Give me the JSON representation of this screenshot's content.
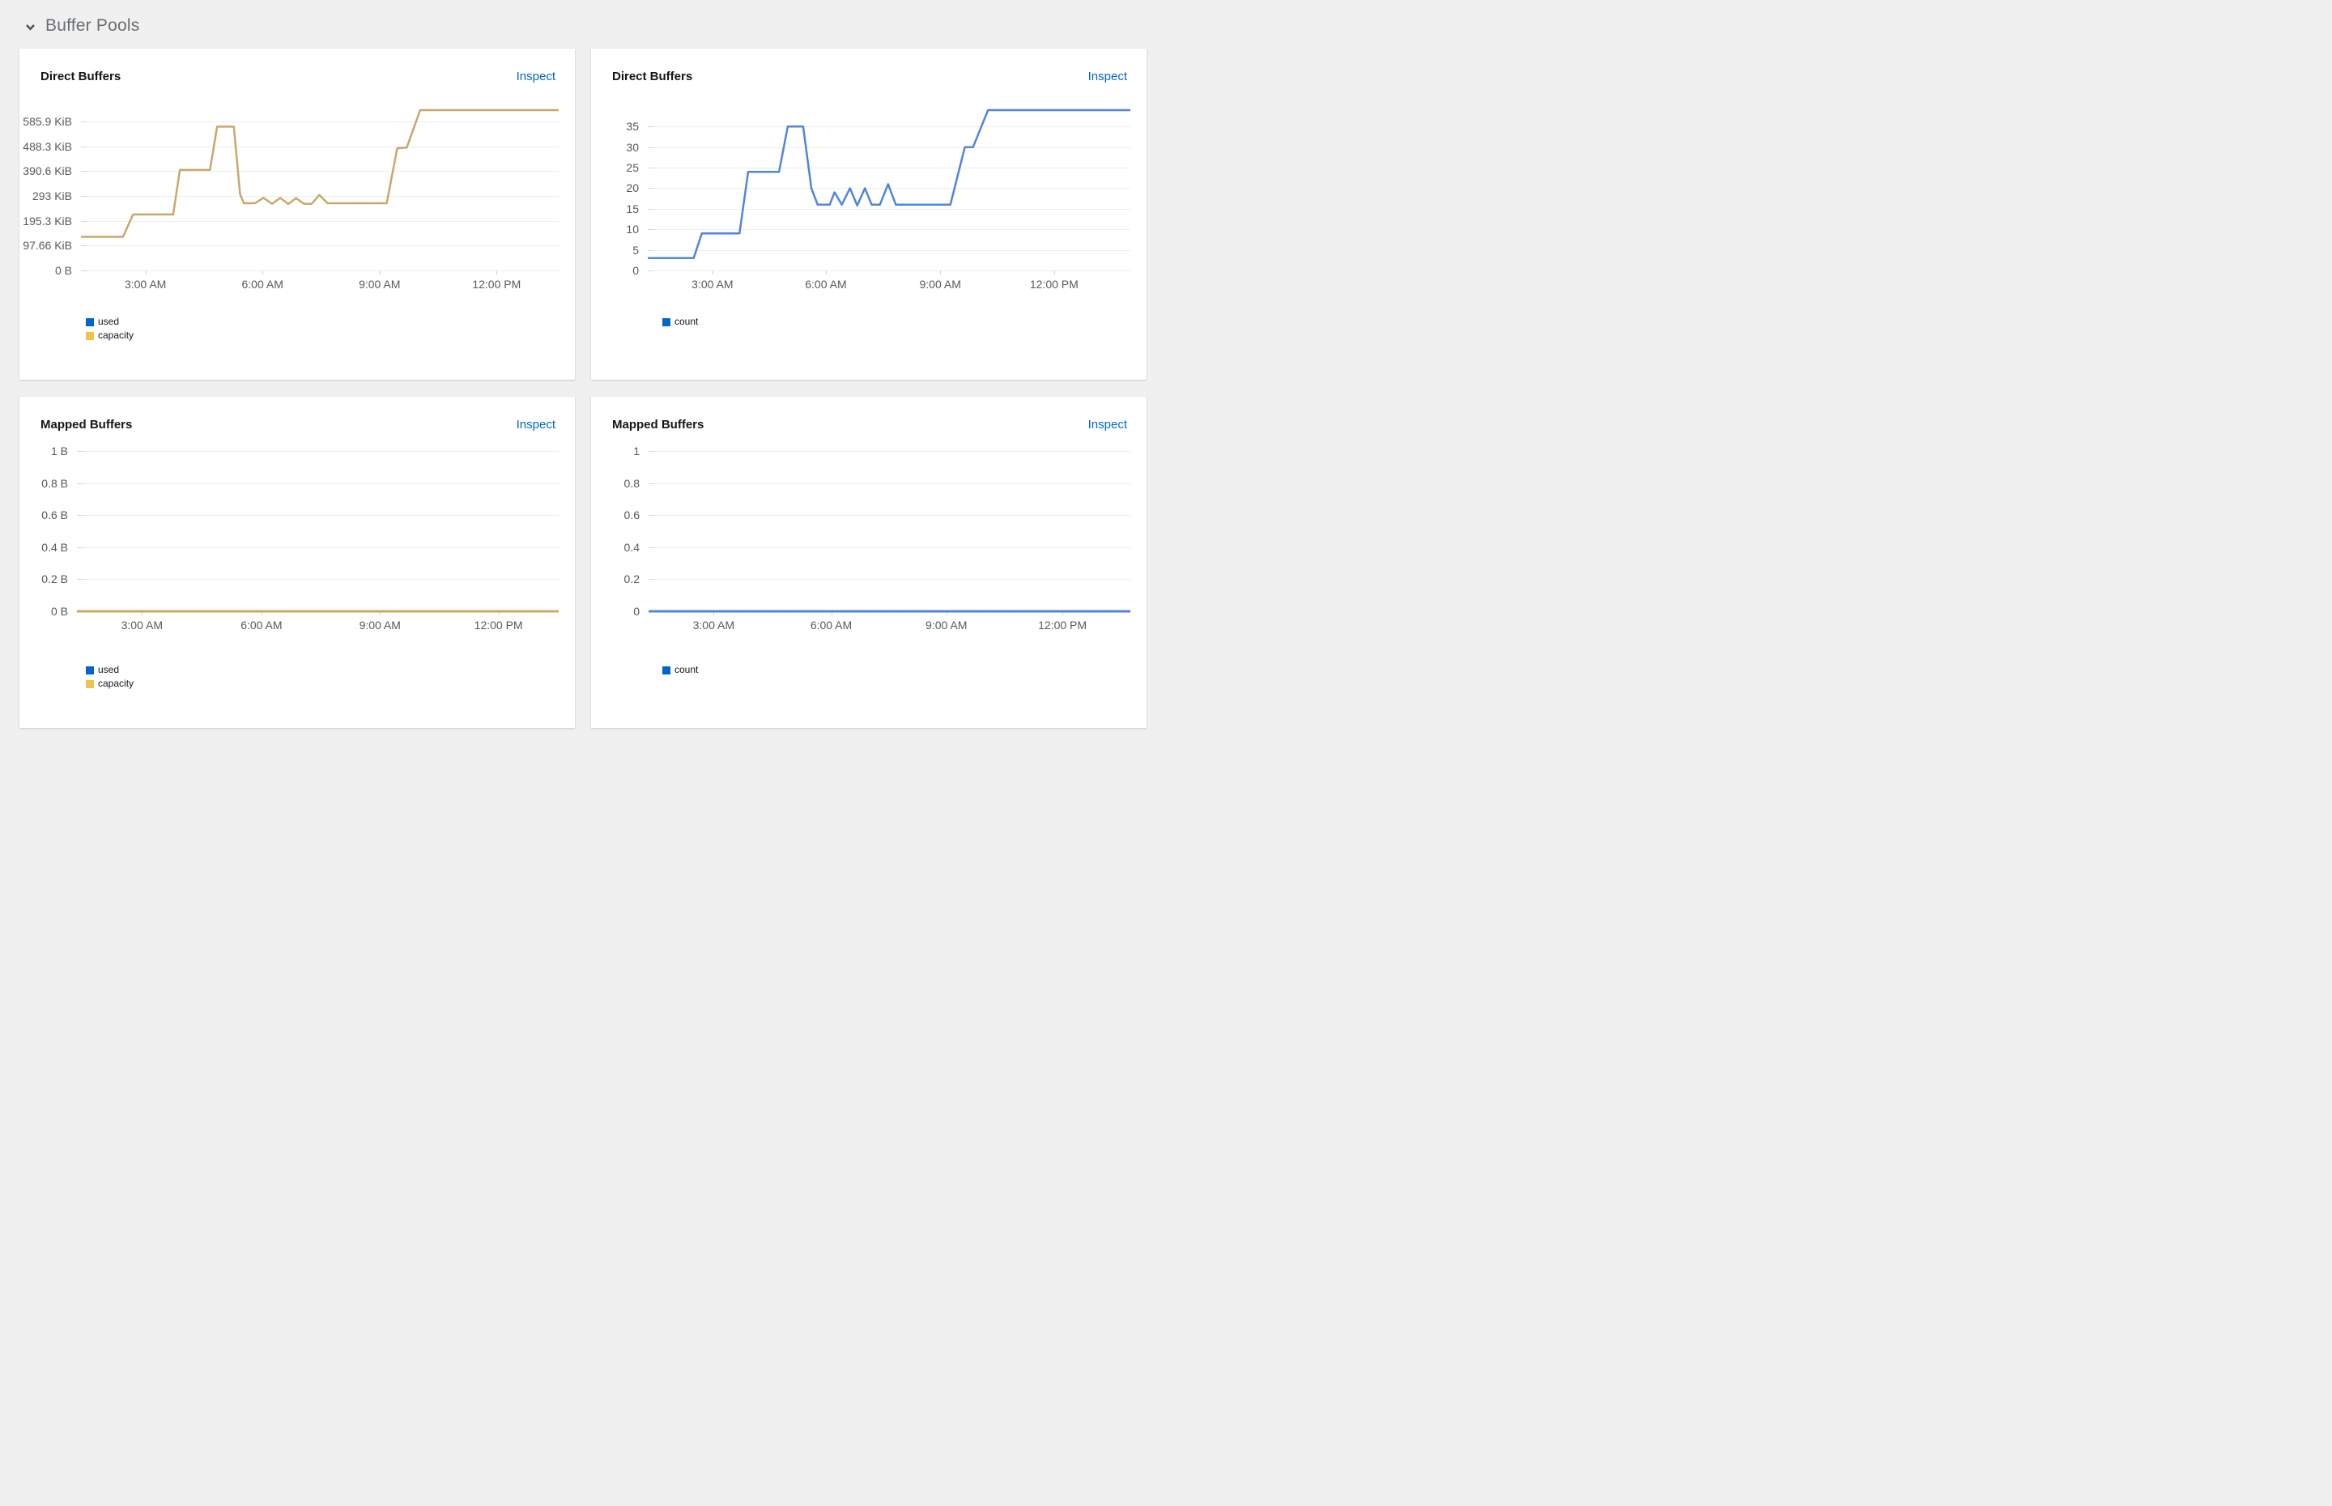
{
  "header": {
    "title": "Buffer Pools",
    "state": "expanded"
  },
  "colors": {
    "link_blue": "#0066cc",
    "line_gold": "#c9a86b",
    "line_blue": "#5185db",
    "legend_used_blue": "#0066cc",
    "legend_capacity_gold": "#f0c24e"
  },
  "chart_data": [
    {
      "id": "direct-buffers-memory",
      "type": "line",
      "title": "Direct Buffers",
      "action": "Inspect",
      "ylabel": "",
      "xlabel": "",
      "grid": true,
      "legend_position": "bottom-left",
      "y_max": 630,
      "y_unit": "KiB",
      "y_ticks": [
        {
          "value": 0,
          "label": "0 B"
        },
        {
          "value": 97.66,
          "label": "97.66 KiB"
        },
        {
          "value": 195.3,
          "label": "195.3 KiB"
        },
        {
          "value": 293,
          "label": "293 KiB"
        },
        {
          "value": 390.6,
          "label": "390.6 KiB"
        },
        {
          "value": 488.3,
          "label": "488.3 KiB"
        },
        {
          "value": 585.9,
          "label": "585.9 KiB"
        }
      ],
      "x_ticks": [
        {
          "pos": 0.135,
          "label": "3:00 AM"
        },
        {
          "pos": 0.38,
          "label": "6:00 AM"
        },
        {
          "pos": 0.625,
          "label": "9:00 AM"
        },
        {
          "pos": 0.87,
          "label": "12:00 PM"
        }
      ],
      "legend": [
        {
          "label": "used",
          "color": "#0066cc"
        },
        {
          "label": "capacity",
          "color": "#f0c24e"
        }
      ],
      "series": [
        {
          "name": "capacity",
          "color": "#c9a86b",
          "points": [
            [
              0,
              132
            ],
            [
              0.088,
              132
            ],
            [
              0.109,
              220
            ],
            [
              0.193,
              220
            ],
            [
              0.207,
              395
            ],
            [
              0.27,
              395
            ],
            [
              0.285,
              565
            ],
            [
              0.32,
              565
            ],
            [
              0.333,
              300
            ],
            [
              0.341,
              264
            ],
            [
              0.364,
              264
            ],
            [
              0.382,
              285
            ],
            [
              0.4,
              262
            ],
            [
              0.417,
              285
            ],
            [
              0.434,
              261
            ],
            [
              0.45,
              284
            ],
            [
              0.467,
              262
            ],
            [
              0.483,
              262
            ],
            [
              0.499,
              297
            ],
            [
              0.516,
              264
            ],
            [
              0.64,
              264
            ],
            [
              0.662,
              480
            ],
            [
              0.682,
              483
            ],
            [
              0.71,
              630
            ],
            [
              1,
              630
            ]
          ]
        }
      ]
    },
    {
      "id": "direct-buffers-count",
      "type": "line",
      "title": "Direct Buffers",
      "action": "Inspect",
      "ylabel": "",
      "xlabel": "",
      "grid": true,
      "legend_position": "bottom-left",
      "y_max": 39,
      "y_unit": "count",
      "y_ticks": [
        {
          "value": 0,
          "label": "0"
        },
        {
          "value": 5,
          "label": "5"
        },
        {
          "value": 10,
          "label": "10"
        },
        {
          "value": 15,
          "label": "15"
        },
        {
          "value": 20,
          "label": "20"
        },
        {
          "value": 25,
          "label": "25"
        },
        {
          "value": 30,
          "label": "30"
        },
        {
          "value": 35,
          "label": "35"
        }
      ],
      "x_ticks": [
        {
          "pos": 0.134,
          "label": "3:00 AM"
        },
        {
          "pos": 0.369,
          "label": "6:00 AM"
        },
        {
          "pos": 0.606,
          "label": "9:00 AM"
        },
        {
          "pos": 0.842,
          "label": "12:00 PM"
        }
      ],
      "legend": [
        {
          "label": "count",
          "color": "#0066cc"
        }
      ],
      "series": [
        {
          "name": "count",
          "color": "#5185db",
          "points": [
            [
              0,
              3
            ],
            [
              0.095,
              3
            ],
            [
              0.112,
              9
            ],
            [
              0.19,
              9
            ],
            [
              0.208,
              24
            ],
            [
              0.272,
              24
            ],
            [
              0.29,
              35
            ],
            [
              0.322,
              35
            ],
            [
              0.339,
              20
            ],
            [
              0.352,
              16
            ],
            [
              0.377,
              16
            ],
            [
              0.387,
              19
            ],
            [
              0.402,
              16
            ],
            [
              0.419,
              20
            ],
            [
              0.434,
              15.8
            ],
            [
              0.45,
              20
            ],
            [
              0.464,
              16
            ],
            [
              0.481,
              16
            ],
            [
              0.498,
              21
            ],
            [
              0.514,
              16
            ],
            [
              0.627,
              16
            ],
            [
              0.657,
              30
            ],
            [
              0.674,
              30
            ],
            [
              0.705,
              39
            ],
            [
              1,
              39
            ]
          ]
        }
      ]
    },
    {
      "id": "mapped-buffers-memory",
      "type": "line",
      "title": "Mapped Buffers",
      "action": "Inspect",
      "ylabel": "",
      "xlabel": "",
      "grid": true,
      "legend_position": "bottom-left",
      "y_max": 1,
      "y_unit": "B",
      "y_ticks": [
        {
          "value": 0,
          "label": "0 B"
        },
        {
          "value": 0.2,
          "label": "0.2 B"
        },
        {
          "value": 0.4,
          "label": "0.4 B"
        },
        {
          "value": 0.6,
          "label": "0.6 B"
        },
        {
          "value": 0.8,
          "label": "0.8 B"
        },
        {
          "value": 1,
          "label": "1 B"
        }
      ],
      "x_ticks": [
        {
          "pos": 0.135,
          "label": "3:00 AM"
        },
        {
          "pos": 0.383,
          "label": "6:00 AM"
        },
        {
          "pos": 0.629,
          "label": "9:00 AM"
        },
        {
          "pos": 0.875,
          "label": "12:00 PM"
        }
      ],
      "legend": [
        {
          "label": "used",
          "color": "#0066cc"
        },
        {
          "label": "capacity",
          "color": "#f0c24e"
        }
      ],
      "series": [
        {
          "name": "capacity",
          "color": "#c9a86b",
          "points": [
            [
              0,
              0
            ],
            [
              1,
              0
            ]
          ]
        }
      ]
    },
    {
      "id": "mapped-buffers-count",
      "type": "line",
      "title": "Mapped Buffers",
      "action": "Inspect",
      "ylabel": "",
      "xlabel": "",
      "grid": true,
      "legend_position": "bottom-left",
      "y_max": 1,
      "y_unit": "count",
      "y_ticks": [
        {
          "value": 0,
          "label": "0"
        },
        {
          "value": 0.2,
          "label": "0.2"
        },
        {
          "value": 0.4,
          "label": "0.4"
        },
        {
          "value": 0.6,
          "label": "0.6"
        },
        {
          "value": 0.8,
          "label": "0.8"
        },
        {
          "value": 1,
          "label": "1"
        }
      ],
      "x_ticks": [
        {
          "pos": 0.135,
          "label": "3:00 AM"
        },
        {
          "pos": 0.379,
          "label": "6:00 AM"
        },
        {
          "pos": 0.618,
          "label": "9:00 AM"
        },
        {
          "pos": 0.859,
          "label": "12:00 PM"
        }
      ],
      "legend": [
        {
          "label": "count",
          "color": "#0066cc"
        }
      ],
      "series": [
        {
          "name": "count",
          "color": "#5185db",
          "points": [
            [
              0,
              0
            ],
            [
              1,
              0
            ]
          ]
        }
      ]
    }
  ]
}
